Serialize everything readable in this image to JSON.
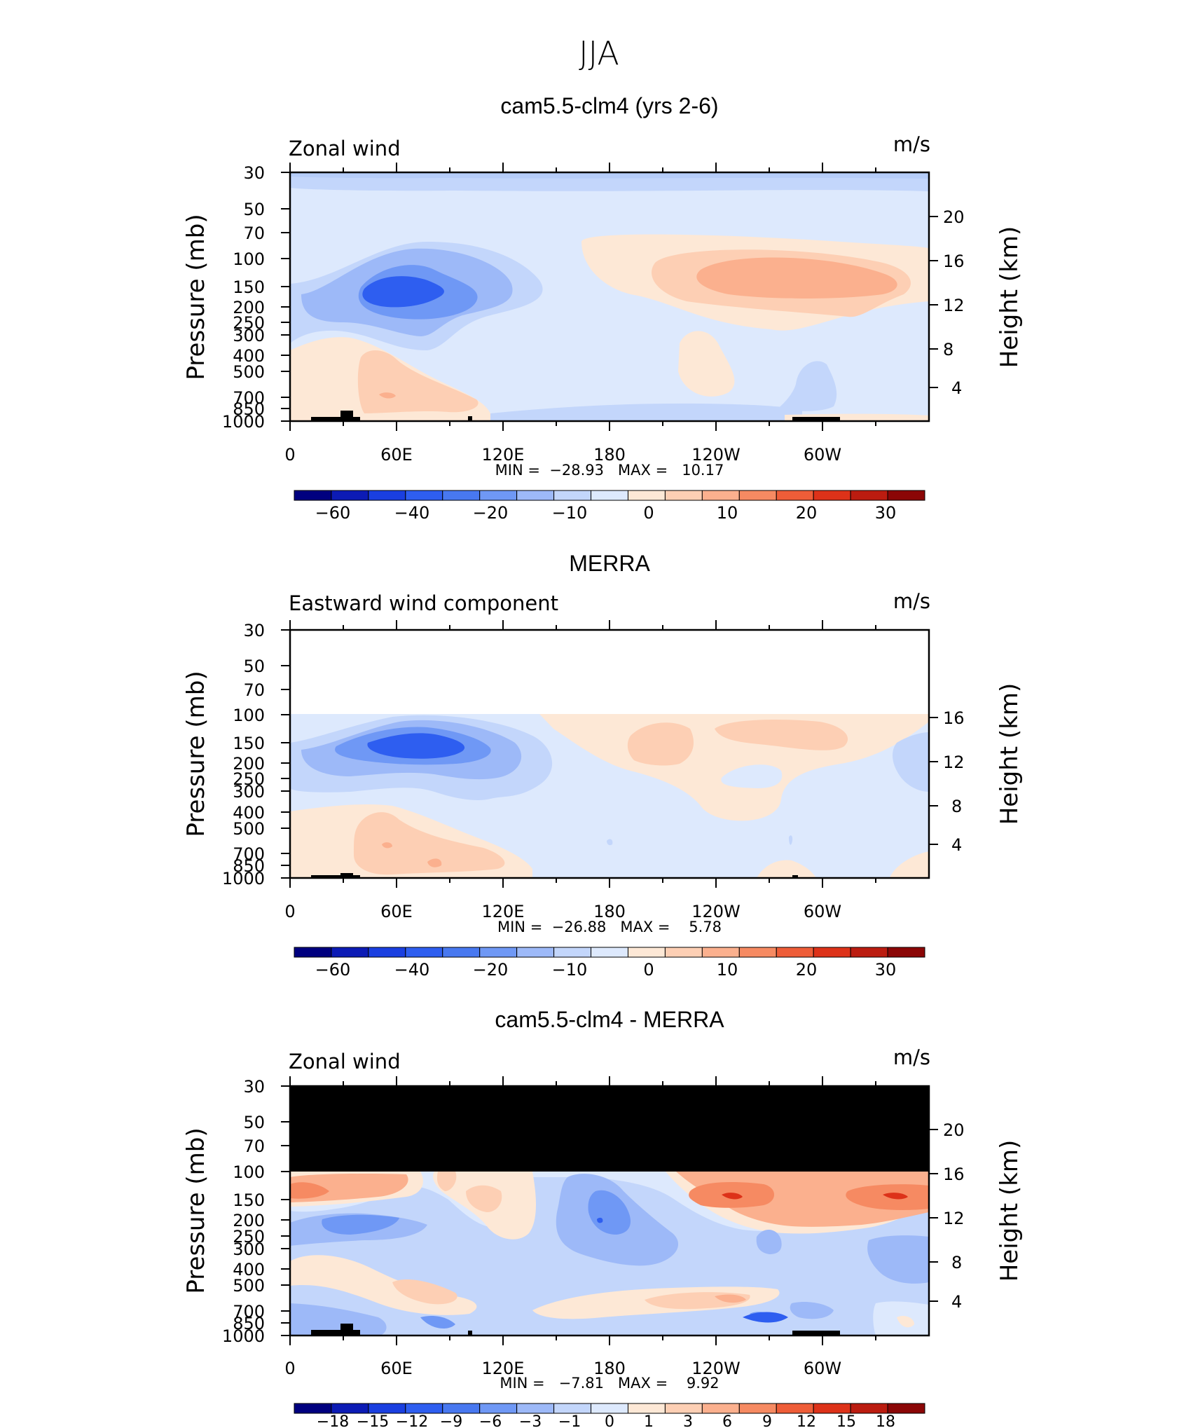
{
  "figure_title": "JJA",
  "panels": [
    {
      "title": "cam5.5-clm4 (yrs 2-6)",
      "left_label": "Zonal wind",
      "units": "m/s",
      "y_label": "Pressure (mb)",
      "y2_label": "Height (km)",
      "y_ticks": [
        "30",
        "50",
        "70",
        "100",
        "150",
        "200",
        "250",
        "300",
        "400",
        "500",
        "700",
        "850",
        "1000"
      ],
      "y2_ticks": [
        "20",
        "16",
        "12",
        "8",
        "4"
      ],
      "x_ticks": [
        "0",
        "60E",
        "120E",
        "180",
        "120W",
        "60W"
      ],
      "stats": "MIN =  −28.93   MAX =   10.17",
      "colorbar_labels": [
        "−60",
        "−40",
        "−20",
        "−10",
        "0",
        "10",
        "20",
        "30"
      ]
    },
    {
      "title": "MERRA",
      "left_label": "Eastward wind component",
      "units": "m/s",
      "y_label": "Pressure (mb)",
      "y2_label": "Height (km)",
      "y_ticks": [
        "30",
        "50",
        "70",
        "100",
        "150",
        "200",
        "250",
        "300",
        "400",
        "500",
        "700",
        "850",
        "1000"
      ],
      "y2_ticks": [
        "16",
        "12",
        "8",
        "4"
      ],
      "x_ticks": [
        "0",
        "60E",
        "120E",
        "180",
        "120W",
        "60W"
      ],
      "stats": "MIN =  −26.88   MAX =    5.78",
      "colorbar_labels": [
        "−60",
        "−40",
        "−20",
        "−10",
        "0",
        "10",
        "20",
        "30"
      ]
    },
    {
      "title": "cam5.5-clm4 - MERRA",
      "left_label": "Zonal wind",
      "units": "m/s",
      "y_label": "Pressure (mb)",
      "y2_label": "Height (km)",
      "y_ticks": [
        "30",
        "50",
        "70",
        "100",
        "150",
        "200",
        "250",
        "300",
        "400",
        "500",
        "700",
        "850",
        "1000"
      ],
      "y2_ticks": [
        "20",
        "16",
        "12",
        "8",
        "4"
      ],
      "x_ticks": [
        "0",
        "60E",
        "120E",
        "180",
        "120W",
        "60W"
      ],
      "stats": "MIN =   −7.81   MAX =    9.92",
      "colorbar_labels": [
        "−18",
        "−15",
        "−12",
        "−9",
        "−6",
        "−3",
        "−1",
        "0",
        "1",
        "3",
        "6",
        "9",
        "12",
        "15",
        "18"
      ]
    }
  ],
  "chart_data": [
    {
      "type": "heatmap",
      "title": "cam5.5-clm4 (yrs 2-6)",
      "variable": "Zonal wind",
      "units": "m/s",
      "xlabel": "",
      "ylabel": "Pressure (mb)",
      "y2label": "Height (km)",
      "x_range": [
        0,
        360
      ],
      "y_range_mb": [
        1000,
        30
      ],
      "min": -28.93,
      "max": 10.17,
      "levels": [
        -60,
        -50,
        -40,
        -30,
        -20,
        -15,
        -10,
        -5,
        0,
        5,
        10,
        15,
        20,
        25,
        30
      ],
      "colors": [
        "#00007f",
        "#0c1bb5",
        "#1a3fe0",
        "#2e5ef0",
        "#4878f0",
        "#6f98f5",
        "#9db9f8",
        "#c3d6fb",
        "#dde9fd",
        "#fde8d6",
        "#fdcfb4",
        "#fbb08e",
        "#f68a62",
        "#ee5d38",
        "#dd3219",
        "#bb1c10",
        "#8b0606"
      ]
    },
    {
      "type": "heatmap",
      "title": "MERRA",
      "variable": "Eastward wind component",
      "units": "m/s",
      "xlabel": "",
      "ylabel": "Pressure (mb)",
      "y2label": "Height (km)",
      "x_range": [
        0,
        360
      ],
      "y_range_mb": [
        1000,
        30
      ],
      "data_top_mb": 100,
      "min": -26.88,
      "max": 5.78,
      "levels": [
        -60,
        -50,
        -40,
        -30,
        -20,
        -15,
        -10,
        -5,
        0,
        5,
        10,
        15,
        20,
        25,
        30
      ],
      "colors": [
        "#00007f",
        "#0c1bb5",
        "#1a3fe0",
        "#2e5ef0",
        "#4878f0",
        "#6f98f5",
        "#9db9f8",
        "#c3d6fb",
        "#dde9fd",
        "#fde8d6",
        "#fdcfb4",
        "#fbb08e",
        "#f68a62",
        "#ee5d38",
        "#dd3219",
        "#bb1c10",
        "#8b0606"
      ]
    },
    {
      "type": "heatmap",
      "title": "cam5.5-clm4 - MERRA",
      "variable": "Zonal wind",
      "units": "m/s",
      "xlabel": "",
      "ylabel": "Pressure (mb)",
      "y2label": "Height (km)",
      "x_range": [
        0,
        360
      ],
      "y_range_mb": [
        1000,
        30
      ],
      "missing_above_mb": 100,
      "min": -7.81,
      "max": 9.92,
      "levels": [
        -18,
        -15,
        -12,
        -9,
        -6,
        -3,
        -1,
        0,
        1,
        3,
        6,
        9,
        12,
        15,
        18
      ],
      "colors": [
        "#00007f",
        "#0c1bb5",
        "#1a3fe0",
        "#2e5ef0",
        "#4878f0",
        "#6f98f5",
        "#9db9f8",
        "#c3d6fb",
        "#dde9fd",
        "#fde8d6",
        "#fdcfb4",
        "#fbb08e",
        "#f68a62",
        "#ee5d38",
        "#dd3219",
        "#bb1c10",
        "#8b0606"
      ]
    }
  ]
}
